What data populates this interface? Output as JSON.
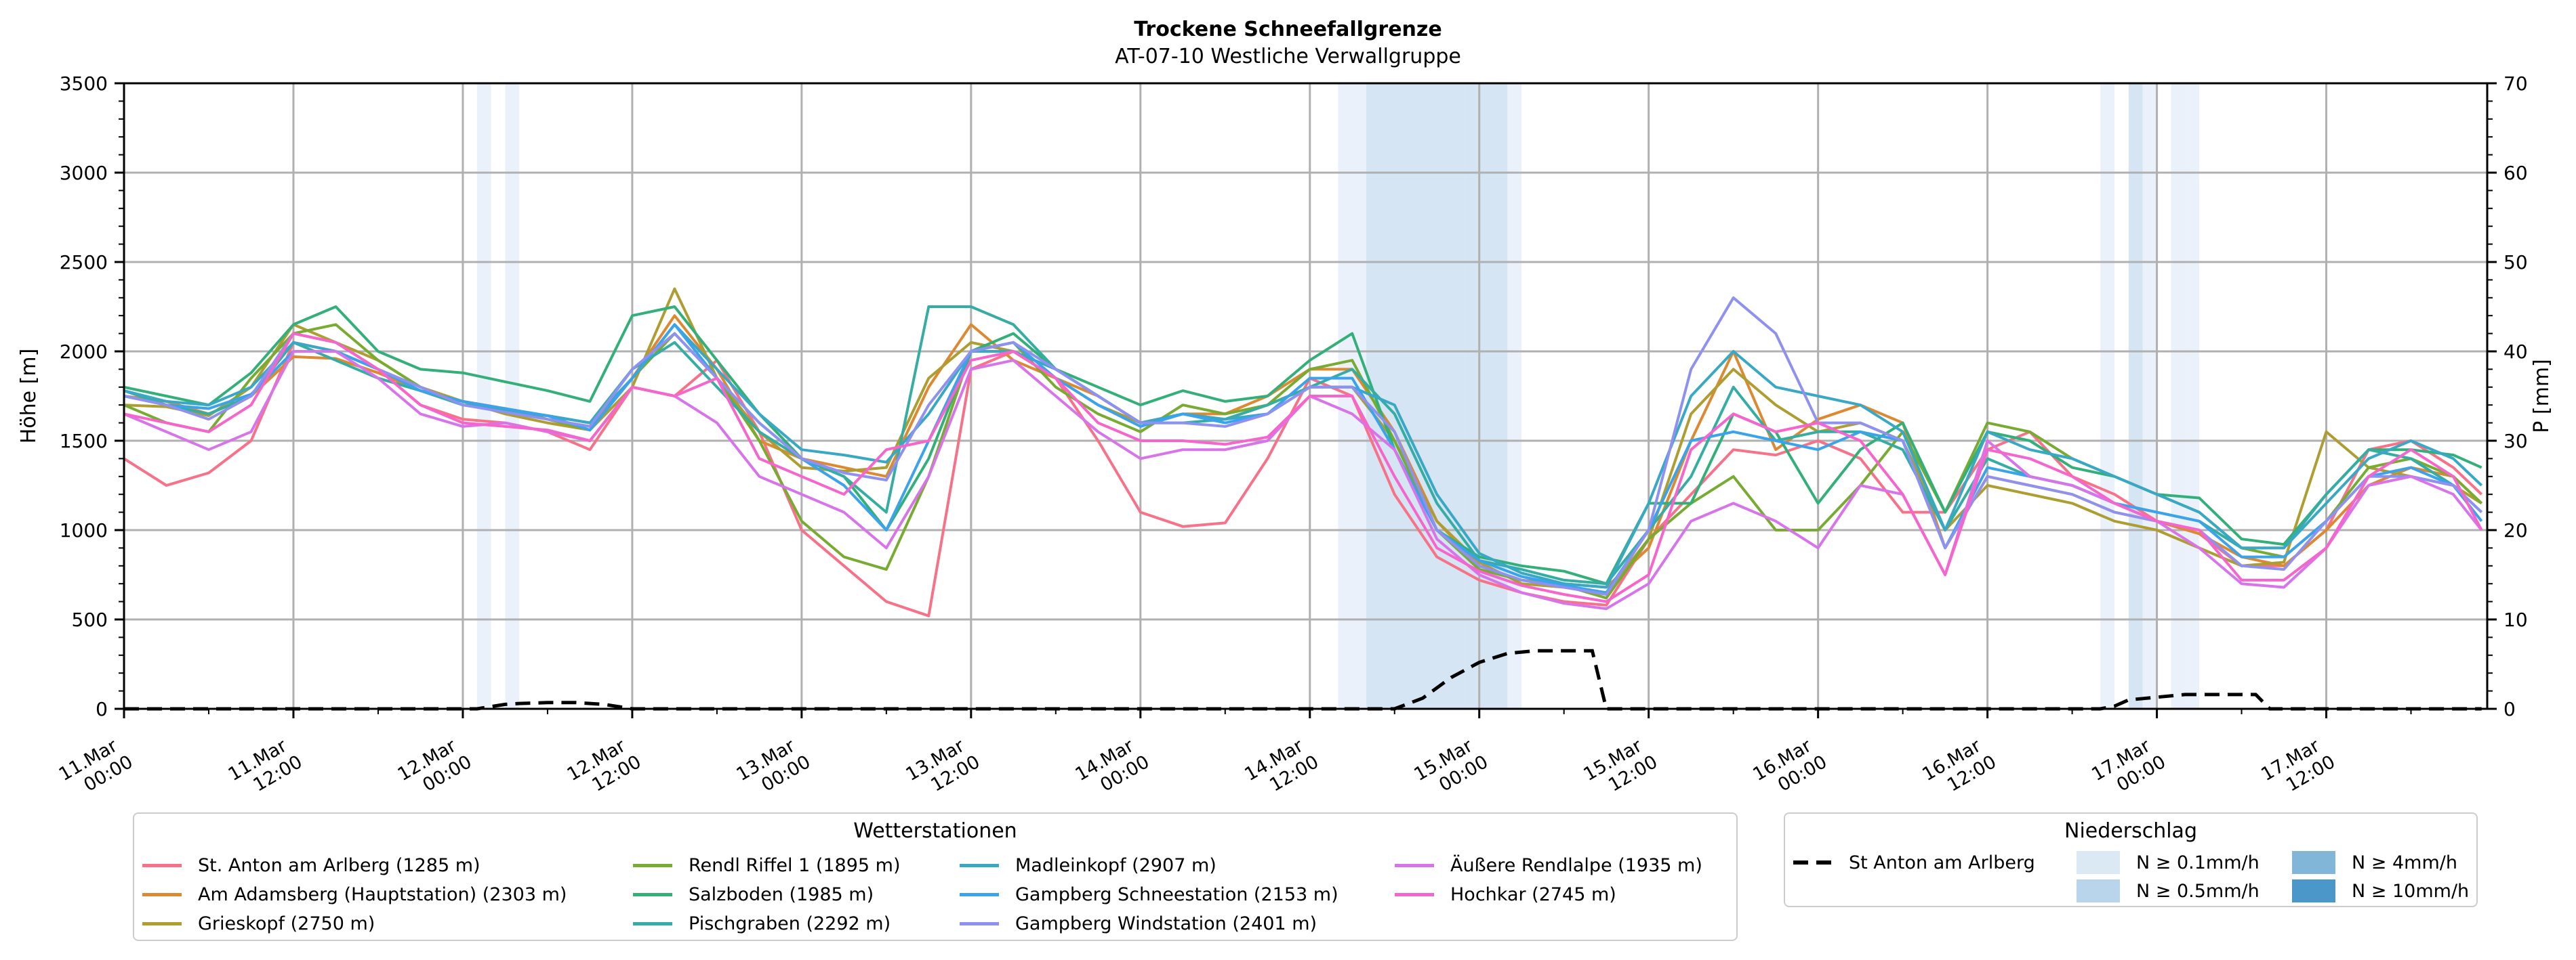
{
  "chart_data": {
    "type": "line",
    "title": "Trockene Schneefallgrenze",
    "subtitle": "AT-07-10 Westliche Verwallgruppe",
    "ylabel": "Höhe [m]",
    "y2label": "P [mm]",
    "ylim": [
      0,
      3500
    ],
    "y2lim": [
      0,
      70
    ],
    "yticks": [
      "0",
      "500",
      "1000",
      "1500",
      "2000",
      "2500",
      "3000",
      "3500"
    ],
    "y2ticks": [
      "0",
      "10",
      "20",
      "30",
      "40",
      "50",
      "60",
      "70"
    ],
    "xrange_hours": [
      0,
      167.4
    ],
    "x_hours": [
      0,
      3,
      6,
      9,
      12,
      15,
      18,
      21,
      24,
      27,
      30,
      33,
      36,
      39,
      42,
      45,
      48,
      51,
      54,
      57,
      60,
      63,
      66,
      69,
      72,
      75,
      78,
      81,
      84,
      87,
      90,
      93,
      96,
      99,
      102,
      105,
      108,
      111,
      114,
      117,
      120,
      123,
      126,
      129,
      132,
      135,
      138,
      141,
      144,
      147,
      150,
      153,
      156,
      159,
      162,
      165,
      167
    ],
    "xticks": [
      {
        "hour": 0,
        "line1": "11.Mar",
        "line2": "00:00"
      },
      {
        "hour": 12,
        "line1": "11.Mar",
        "line2": "12:00"
      },
      {
        "hour": 24,
        "line1": "12.Mar",
        "line2": "00:00"
      },
      {
        "hour": 36,
        "line1": "12.Mar",
        "line2": "12:00"
      },
      {
        "hour": 48,
        "line1": "13.Mar",
        "line2": "00:00"
      },
      {
        "hour": 60,
        "line1": "13.Mar",
        "line2": "12:00"
      },
      {
        "hour": 72,
        "line1": "14.Mar",
        "line2": "00:00"
      },
      {
        "hour": 84,
        "line1": "14.Mar",
        "line2": "12:00"
      },
      {
        "hour": 96,
        "line1": "15.Mar",
        "line2": "00:00"
      },
      {
        "hour": 108,
        "line1": "15.Mar",
        "line2": "12:00"
      },
      {
        "hour": 120,
        "line1": "16.Mar",
        "line2": "00:00"
      },
      {
        "hour": 132,
        "line1": "16.Mar",
        "line2": "12:00"
      },
      {
        "hour": 144,
        "line1": "17.Mar",
        "line2": "00:00"
      },
      {
        "hour": 156,
        "line1": "17.Mar",
        "line2": "12:00"
      }
    ],
    "grid": true,
    "series": [
      {
        "name": "St. Anton am Arlberg (1285 m)",
        "color": "#f77189",
        "values": [
          1400,
          1250,
          1320,
          1500,
          2050,
          2000,
          1900,
          1700,
          1620,
          1600,
          1550,
          1450,
          1800,
          1750,
          1950,
          1550,
          1000,
          800,
          600,
          520,
          1900,
          2000,
          1850,
          1500,
          1100,
          1020,
          1040,
          1400,
          1850,
          1750,
          1200,
          850,
          720,
          650,
          600,
          580,
          950,
          1200,
          1450,
          1420,
          1500,
          1400,
          1100,
          1100,
          1450,
          1550,
          1300,
          1200,
          1050,
          980,
          800,
          800,
          1000,
          1450,
          1500,
          1350,
          1200
        ]
      },
      {
        "name": "Am Adamsberg (Hauptstation) (2303 m)",
        "color": "#dc8932",
        "values": [
          1750,
          1720,
          1650,
          1750,
          1970,
          1960,
          1880,
          1780,
          1720,
          1680,
          1620,
          1580,
          1850,
          2200,
          1900,
          1500,
          1400,
          1350,
          1300,
          1800,
          2150,
          1950,
          1850,
          1750,
          1600,
          1650,
          1650,
          1750,
          1900,
          1900,
          1550,
          1050,
          800,
          720,
          700,
          680,
          900,
          1500,
          2000,
          1450,
          1620,
          1700,
          1600,
          900,
          1300,
          1250,
          1200,
          1100,
          1050,
          980,
          850,
          800,
          1000,
          1250,
          1350,
          1300,
          1150
        ]
      },
      {
        "name": "Grieskopf (2750 m)",
        "color": "#ae9d31",
        "values": [
          1700,
          1690,
          1640,
          1800,
          2150,
          2050,
          1950,
          1800,
          1720,
          1650,
          1600,
          1560,
          1800,
          2350,
          1850,
          1550,
          1350,
          1330,
          1350,
          1850,
          2050,
          2000,
          1850,
          1700,
          1600,
          1650,
          1620,
          1700,
          1800,
          1800,
          1500,
          1050,
          820,
          700,
          680,
          650,
          950,
          1650,
          1900,
          1700,
          1550,
          1600,
          1500,
          1000,
          1250,
          1200,
          1150,
          1050,
          1000,
          900,
          800,
          820,
          1550,
          1350,
          1300,
          1250,
          1150
        ]
      },
      {
        "name": "Rendl Riffel 1 (1895 m)",
        "color": "#77ab31",
        "values": [
          1700,
          1600,
          1550,
          1850,
          2100,
          2150,
          1950,
          1800,
          1700,
          1680,
          1620,
          1560,
          1850,
          2100,
          1850,
          1500,
          1050,
          850,
          780,
          1300,
          2000,
          2050,
          1800,
          1650,
          1550,
          1700,
          1650,
          1700,
          1900,
          1950,
          1500,
          1000,
          780,
          720,
          690,
          620,
          950,
          1150,
          1300,
          1000,
          1000,
          1250,
          1550,
          1100,
          1600,
          1550,
          1400,
          1300,
          1200,
          1100,
          900,
          850,
          1050,
          1350,
          1400,
          1300,
          1150
        ]
      },
      {
        "name": "Salzboden (1985 m)",
        "color": "#33b07a",
        "values": [
          1800,
          1750,
          1700,
          1880,
          2150,
          2250,
          2000,
          1900,
          1880,
          1830,
          1780,
          1720,
          2200,
          2250,
          1950,
          1650,
          1400,
          1300,
          1000,
          1400,
          2000,
          2100,
          1900,
          1800,
          1700,
          1780,
          1720,
          1750,
          1950,
          2100,
          1450,
          1000,
          850,
          800,
          770,
          700,
          1150,
          1150,
          1650,
          1550,
          1150,
          1450,
          1600,
          1100,
          1550,
          1500,
          1350,
          1300,
          1200,
          1180,
          950,
          920,
          1200,
          1450,
          1450,
          1420,
          1350
        ]
      },
      {
        "name": "Pischgraben (2292 m)",
        "color": "#36ada4",
        "values": [
          1780,
          1700,
          1650,
          1750,
          2050,
          1950,
          1850,
          1780,
          1700,
          1670,
          1640,
          1600,
          1900,
          2050,
          1800,
          1550,
          1400,
          1300,
          1100,
          2250,
          2250,
          2150,
          1900,
          1750,
          1600,
          1600,
          1620,
          1700,
          1800,
          1900,
          1650,
          1150,
          830,
          780,
          720,
          700,
          1000,
          1300,
          1800,
          1500,
          1550,
          1550,
          1450,
          1000,
          1400,
          1300,
          1250,
          1150,
          1100,
          1050,
          900,
          900,
          1200,
          1450,
          1400,
          1250,
          1100
        ]
      },
      {
        "name": "Madleinkopf (2907 m)",
        "color": "#38a8c5",
        "values": [
          1780,
          1720,
          1700,
          1800,
          2050,
          2000,
          1900,
          1780,
          1720,
          1660,
          1640,
          1600,
          1850,
          2150,
          1900,
          1650,
          1450,
          1420,
          1380,
          1650,
          2000,
          2000,
          1900,
          1750,
          1600,
          1650,
          1620,
          1650,
          1800,
          1800,
          1700,
          1200,
          870,
          760,
          700,
          680,
          1150,
          1750,
          2000,
          1800,
          1750,
          1700,
          1550,
          1000,
          1550,
          1450,
          1400,
          1300,
          1200,
          1100,
          900,
          900,
          1150,
          1400,
          1500,
          1400,
          1250
        ]
      },
      {
        "name": "Gampberg Schneestation (2153 m)",
        "color": "#3ba3ec",
        "values": [
          1750,
          1700,
          1680,
          1760,
          2000,
          2000,
          1900,
          1780,
          1720,
          1680,
          1640,
          1560,
          1850,
          2150,
          1850,
          1600,
          1400,
          1250,
          1000,
          1500,
          2000,
          2050,
          1850,
          1700,
          1580,
          1650,
          1600,
          1650,
          1850,
          1850,
          1450,
          1000,
          830,
          740,
          690,
          650,
          1000,
          1500,
          1550,
          1500,
          1450,
          1550,
          1500,
          900,
          1350,
          1300,
          1250,
          1150,
          1100,
          1050,
          850,
          850,
          1050,
          1300,
          1350,
          1250,
          1050
        ]
      },
      {
        "name": "Gampberg Windstation (2401 m)",
        "color": "#8e91f0",
        "values": [
          1750,
          1700,
          1620,
          1750,
          2100,
          2050,
          1900,
          1800,
          1700,
          1660,
          1620,
          1580,
          1900,
          2100,
          1850,
          1600,
          1400,
          1320,
          1280,
          1700,
          2000,
          2050,
          1900,
          1750,
          1600,
          1600,
          1580,
          1650,
          1800,
          1800,
          1550,
          1000,
          800,
          720,
          680,
          640,
          1000,
          1900,
          2300,
          2100,
          1600,
          1600,
          1500,
          900,
          1300,
          1250,
          1200,
          1100,
          1050,
          1000,
          800,
          780,
          1050,
          1300,
          1300,
          1250,
          1100
        ]
      },
      {
        "name": "Äußere Rendlalpe (1935 m)",
        "color": "#d874ea",
        "values": [
          1650,
          1550,
          1450,
          1550,
          2000,
          2000,
          1850,
          1650,
          1580,
          1600,
          1550,
          1500,
          1800,
          1750,
          1600,
          1300,
          1200,
          1100,
          900,
          1300,
          1900,
          1950,
          1750,
          1550,
          1400,
          1450,
          1450,
          1500,
          1750,
          1650,
          1450,
          950,
          750,
          650,
          590,
          560,
          700,
          1050,
          1150,
          1050,
          900,
          1250,
          1200,
          750,
          1500,
          1300,
          1250,
          1150,
          1050,
          900,
          700,
          680,
          900,
          1250,
          1300,
          1200,
          1000
        ]
      },
      {
        "name": "Hochkar (2745 m)",
        "color": "#f565cc",
        "values": [
          1650,
          1600,
          1550,
          1700,
          2100,
          2050,
          1900,
          1700,
          1600,
          1580,
          1560,
          1500,
          1800,
          1750,
          1850,
          1400,
          1300,
          1200,
          1450,
          1500,
          1950,
          2000,
          1850,
          1600,
          1500,
          1500,
          1480,
          1520,
          1750,
          1750,
          1300,
          900,
          770,
          690,
          640,
          600,
          750,
          1450,
          1650,
          1550,
          1600,
          1500,
          1200,
          750,
          1450,
          1400,
          1300,
          1150,
          1050,
          1000,
          720,
          720,
          900,
          1300,
          1450,
          1300,
          1000
        ]
      }
    ],
    "precip_series": {
      "name": "St Anton am Arlberg",
      "color": "#000000",
      "style": "dashed",
      "x_hours": [
        0,
        25,
        27,
        28,
        30,
        32,
        34,
        36,
        90,
        92,
        94,
        96,
        98,
        100,
        102,
        103,
        104,
        105,
        140,
        141,
        142,
        144,
        146,
        150,
        151,
        152,
        167
      ],
      "values": [
        0,
        0,
        0.5,
        0.6,
        0.7,
        0.7,
        0.5,
        0,
        0,
        1.2,
        3.5,
        5.2,
        6.2,
        6.5,
        6.5,
        6.5,
        6.5,
        0,
        0,
        0.3,
        1.0,
        1.3,
        1.6,
        1.6,
        1.6,
        0,
        0
      ]
    },
    "precip_bands": [
      {
        "start_hour": 25,
        "end_hour": 26,
        "level": "0.1"
      },
      {
        "start_hour": 27,
        "end_hour": 28,
        "level": "0.1"
      },
      {
        "start_hour": 86,
        "end_hour": 88,
        "level": "0.1"
      },
      {
        "start_hour": 88,
        "end_hour": 95,
        "level": "0.5"
      },
      {
        "start_hour": 95,
        "end_hour": 98,
        "level": "0.5"
      },
      {
        "start_hour": 98,
        "end_hour": 99,
        "level": "0.1"
      },
      {
        "start_hour": 140,
        "end_hour": 141,
        "level": "0.1"
      },
      {
        "start_hour": 142,
        "end_hour": 143,
        "level": "0.5"
      },
      {
        "start_hour": 143,
        "end_hour": 144,
        "level": "0.1"
      },
      {
        "start_hour": 145,
        "end_hour": 146,
        "level": "0.1"
      },
      {
        "start_hour": 146,
        "end_hour": 147,
        "level": "0.1"
      }
    ],
    "band_colors": {
      "0.1": "#eaf1fa",
      "0.5": "#d5e5f3",
      "4": "#85b8da",
      "10": "#4c98c9"
    }
  },
  "legend_stations": {
    "title": "Wetterstationen"
  },
  "legend_precip": {
    "title": "Niederschlag",
    "line_label": "St Anton am Arlberg",
    "items": [
      {
        "label": "N ≥ 0.1mm/h",
        "color": "#dbe9f5"
      },
      {
        "label": "N ≥ 0.5mm/h",
        "color": "#b9d5eb"
      },
      {
        "label": "N ≥ 4mm/h",
        "color": "#82b6d9"
      },
      {
        "label": "N ≥ 10mm/h",
        "color": "#4b97c9"
      }
    ]
  }
}
